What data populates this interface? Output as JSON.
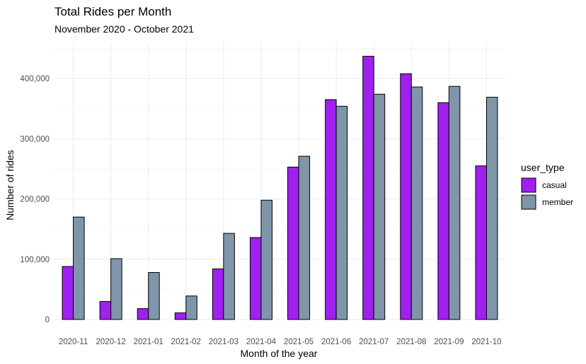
{
  "chart_data": {
    "type": "bar",
    "title": "Total Rides per Month",
    "subtitle": "November 2020 - October 2021",
    "xlabel": "Month of the year",
    "ylabel": "Number of rides",
    "categories": [
      "2020-11",
      "2020-12",
      "2021-01",
      "2021-02",
      "2021-03",
      "2021-04",
      "2021-05",
      "2021-06",
      "2021-07",
      "2021-08",
      "2021-09",
      "2021-10"
    ],
    "series": [
      {
        "name": "casual",
        "color": "#a020f0",
        "values": [
          88000,
          30000,
          18000,
          11000,
          84000,
          136000,
          253000,
          365000,
          437000,
          408000,
          360000,
          255000
        ]
      },
      {
        "name": "member",
        "color": "#7f96aa",
        "values": [
          170000,
          101000,
          78000,
          39000,
          143000,
          198000,
          271000,
          354000,
          374000,
          386000,
          387000,
          369000
        ]
      }
    ],
    "ylim": [
      0,
      460000
    ],
    "yticks": [
      0,
      100000,
      200000,
      300000,
      400000
    ],
    "ytick_labels": [
      "0",
      "100,000",
      "200,000",
      "300,000",
      "400,000"
    ],
    "legend": {
      "title": "user_type",
      "position": "right"
    },
    "grid": true
  }
}
